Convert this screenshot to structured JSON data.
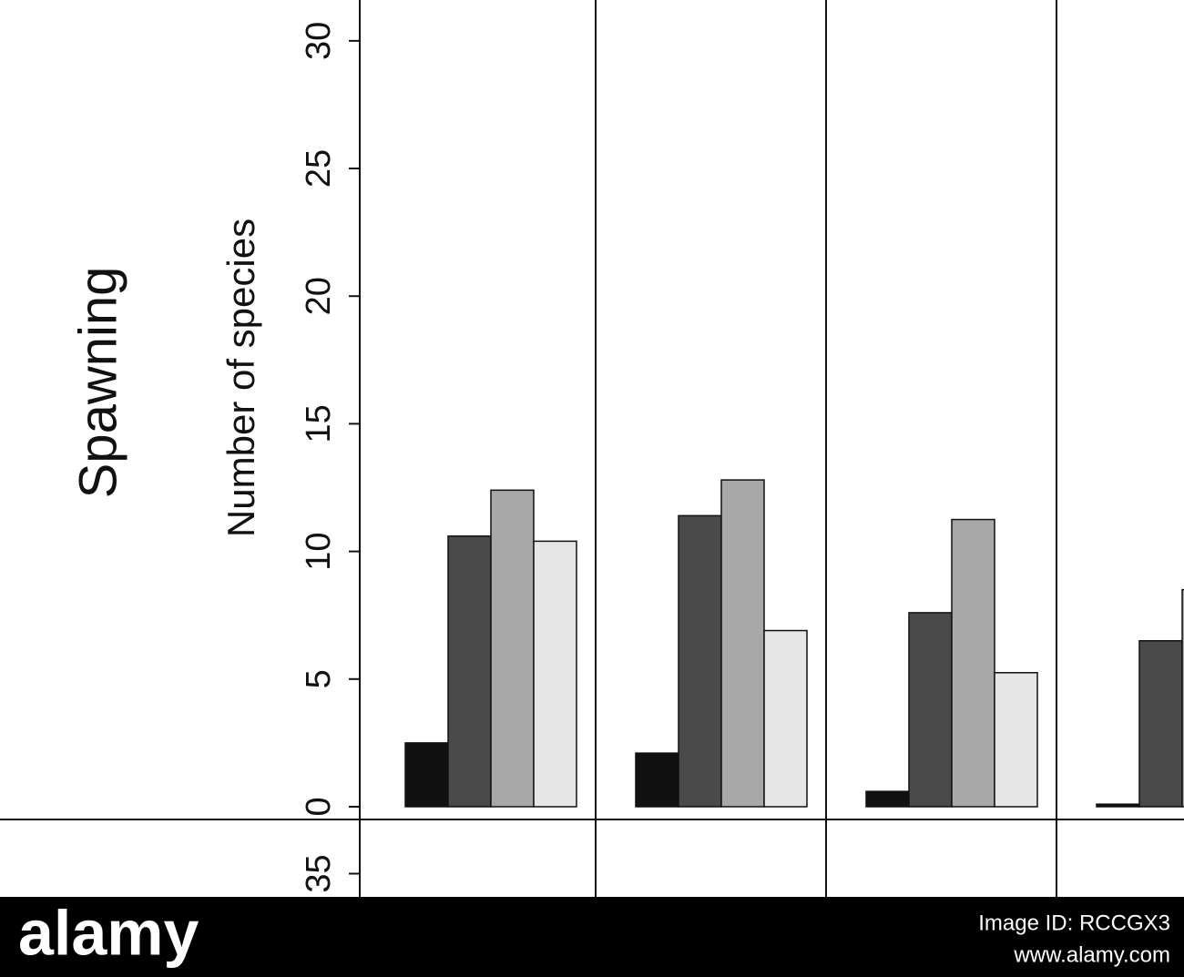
{
  "chart_data": [
    {
      "type": "bar",
      "title": "Spawning",
      "y_label": "Number of species",
      "categories": [
        null,
        null,
        null,
        null
      ],
      "series": [
        {
          "color": "#111111",
          "values": [
            2.5,
            2.1,
            0.6,
            0.1
          ]
        },
        {
          "color": "#4a4a4a",
          "values": [
            10.6,
            11.4,
            7.6,
            6.5
          ]
        },
        {
          "color": "#a8a8a8",
          "values": [
            12.4,
            12.8,
            11.25,
            8.5
          ]
        },
        {
          "color": "#e6e6e6",
          "values": [
            10.4,
            6.9,
            5.25,
            null
          ]
        }
      ],
      "ylim": [
        -0.5,
        31.6
      ],
      "yticks": [
        0,
        5,
        10,
        15,
        20,
        25,
        30
      ]
    },
    {
      "type": "bar",
      "ylim": [
        34.1,
        37.1
      ],
      "yticks": [
        35
      ]
    }
  ],
  "watermark": {
    "logo": "alamy",
    "image_id": "Image ID: RCCGX3",
    "url": "www.alamy.com"
  }
}
